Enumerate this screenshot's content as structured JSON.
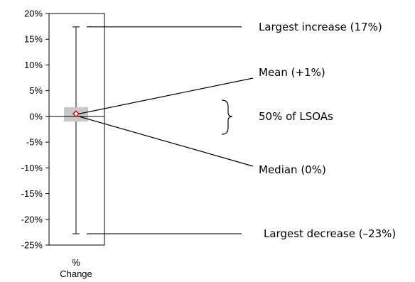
{
  "chart_data": {
    "type": "box",
    "ylim": [
      -25,
      20
    ],
    "yticks": [
      "20%",
      "15%",
      "10%",
      "5%",
      "0%",
      "-5%",
      "-10%",
      "-15%",
      "-20%",
      "-25%"
    ],
    "ytick_values": [
      20,
      15,
      10,
      5,
      0,
      -5,
      -10,
      -15,
      -20,
      -25
    ],
    "category_label_lines": [
      "%",
      "Change"
    ],
    "box": {
      "max": 17.4,
      "q3": 1.8,
      "median": 0,
      "mean": 0.5,
      "q1": -1.0,
      "min": -22.8
    },
    "box_color": "#c8c8c8",
    "mean_marker_color": "#cc0000",
    "annotations": {
      "largest_increase": "Largest increase (17%)",
      "mean": "Mean (+1%)",
      "interquartile": "50% of LSOAs",
      "median": "Median (0%)",
      "largest_decrease": "Largest decrease (–23%)"
    }
  }
}
